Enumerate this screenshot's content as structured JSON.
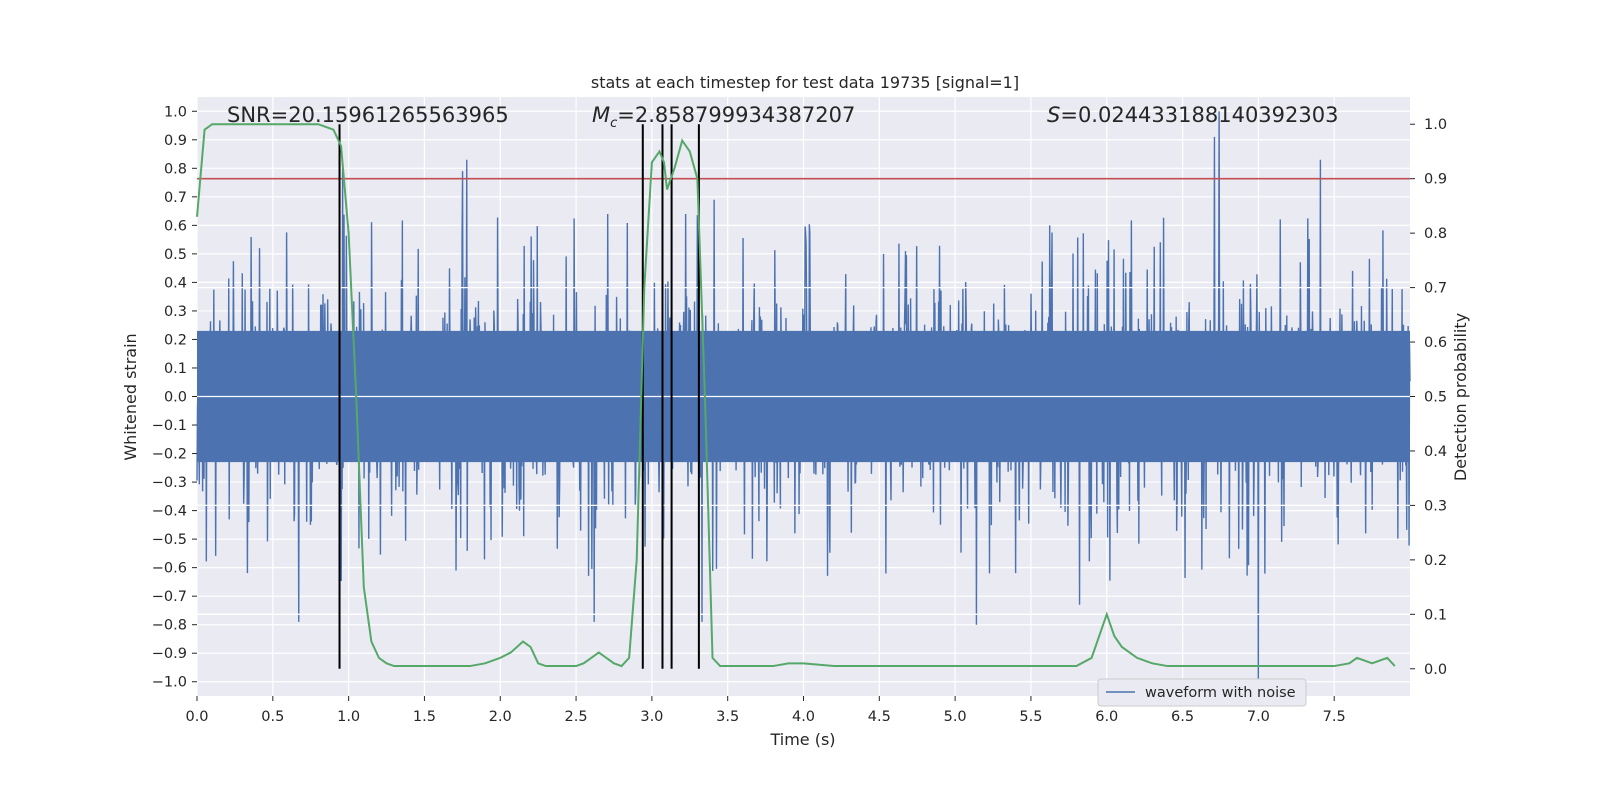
{
  "chart_data": {
    "type": "line",
    "title": "stats at each timestep for test data 19735 [signal=1]",
    "xlabel": "Time (s)",
    "ylabel": "Whitened strain",
    "y2label": "Detection probability",
    "xlim": [
      0,
      8
    ],
    "ylim": [
      -1.05,
      1.05
    ],
    "y2lim": [
      -0.05,
      1.05
    ],
    "xticks": [
      0.0,
      0.5,
      1.0,
      1.5,
      2.0,
      2.5,
      3.0,
      3.5,
      4.0,
      4.5,
      5.0,
      5.5,
      6.0,
      6.5,
      7.0,
      7.5
    ],
    "yticks": [
      -1.0,
      -0.9,
      -0.8,
      -0.7,
      -0.6,
      -0.5,
      -0.4,
      -0.3,
      -0.2,
      -0.1,
      0.0,
      0.1,
      0.2,
      0.3,
      0.4,
      0.5,
      0.6,
      0.7,
      0.8,
      0.9,
      1.0
    ],
    "y2ticks": [
      0.0,
      0.1,
      0.2,
      0.3,
      0.4,
      0.5,
      0.6,
      0.7,
      0.8,
      0.9,
      1.0
    ],
    "grid": true,
    "annotations": {
      "snr": "SNR=20.15961265563965",
      "mc_symbol": "M",
      "mc_sub": "c",
      "mc_value": "=2.858799934387207",
      "s_symbol": "S",
      "s_value": "=0.024433188140392303"
    },
    "legend": {
      "position": "lower-right",
      "entries": [
        {
          "label": "waveform with noise",
          "color": "#4c72b0"
        }
      ]
    },
    "threshold": {
      "axis": "right",
      "value": 0.9,
      "color": "#c44e52"
    },
    "vertical_lines": {
      "x": [
        0.94,
        2.94,
        3.07,
        3.13,
        3.31
      ],
      "ymin": 0.0,
      "ymax": 1.0,
      "color": "#000000"
    },
    "series": [
      {
        "name": "waveform with noise",
        "axis": "left",
        "color": "#4c72b0",
        "style": "dense noise waveform",
        "peaks": [
          {
            "x": 6.74,
            "y": 1.0
          },
          {
            "x": 6.71,
            "y": 0.91
          },
          {
            "x": 7.41,
            "y": 0.83
          },
          {
            "x": 1.78,
            "y": 0.83
          },
          {
            "x": 1.75,
            "y": 0.79
          },
          {
            "x": 0.96,
            "y": 0.8
          },
          {
            "x": 3.41,
            "y": 0.69
          },
          {
            "x": 3.33,
            "y": 0.76
          },
          {
            "x": 7.0,
            "y": -1.0
          },
          {
            "x": 0.67,
            "y": -0.79
          },
          {
            "x": 2.62,
            "y": -0.79
          },
          {
            "x": 5.14,
            "y": -0.8
          },
          {
            "x": 5.82,
            "y": -0.73
          },
          {
            "x": 3.33,
            "y": -0.79
          }
        ]
      },
      {
        "name": "",
        "axis": "right",
        "color": "#55a868",
        "x": [
          0.0,
          0.05,
          0.1,
          0.2,
          0.3,
          0.4,
          0.5,
          0.6,
          0.7,
          0.8,
          0.9,
          0.95,
          1.0,
          1.05,
          1.1,
          1.15,
          1.2,
          1.25,
          1.3,
          1.4,
          1.5,
          1.6,
          1.7,
          1.8,
          1.9,
          2.0,
          2.07,
          2.15,
          2.2,
          2.25,
          2.3,
          2.35,
          2.4,
          2.45,
          2.5,
          2.55,
          2.6,
          2.65,
          2.7,
          2.75,
          2.8,
          2.85,
          2.9,
          2.95,
          3.0,
          3.05,
          3.08,
          3.1,
          3.15,
          3.2,
          3.25,
          3.3,
          3.35,
          3.4,
          3.45,
          3.5,
          3.6,
          3.7,
          3.8,
          3.9,
          4.0,
          4.2,
          4.4,
          4.6,
          4.8,
          5.0,
          5.2,
          5.4,
          5.6,
          5.8,
          5.9,
          6.0,
          6.05,
          6.1,
          6.2,
          6.3,
          6.4,
          6.6,
          6.8,
          7.0,
          7.2,
          7.4,
          7.5,
          7.6,
          7.65,
          7.7,
          7.75,
          7.8,
          7.85,
          7.9
        ],
        "values": [
          0.83,
          0.99,
          1.0,
          1.0,
          1.0,
          1.0,
          1.0,
          1.0,
          1.0,
          1.0,
          0.99,
          0.96,
          0.8,
          0.5,
          0.15,
          0.05,
          0.02,
          0.01,
          0.005,
          0.005,
          0.005,
          0.005,
          0.005,
          0.005,
          0.01,
          0.02,
          0.03,
          0.05,
          0.04,
          0.01,
          0.005,
          0.005,
          0.005,
          0.005,
          0.005,
          0.01,
          0.02,
          0.03,
          0.02,
          0.01,
          0.005,
          0.02,
          0.2,
          0.7,
          0.93,
          0.95,
          0.93,
          0.88,
          0.92,
          0.97,
          0.95,
          0.9,
          0.5,
          0.02,
          0.005,
          0.005,
          0.005,
          0.005,
          0.005,
          0.01,
          0.01,
          0.005,
          0.005,
          0.005,
          0.005,
          0.005,
          0.005,
          0.005,
          0.005,
          0.005,
          0.02,
          0.1,
          0.06,
          0.04,
          0.02,
          0.01,
          0.005,
          0.005,
          0.005,
          0.005,
          0.005,
          0.005,
          0.005,
          0.01,
          0.02,
          0.015,
          0.01,
          0.015,
          0.02,
          0.005
        ]
      }
    ]
  }
}
